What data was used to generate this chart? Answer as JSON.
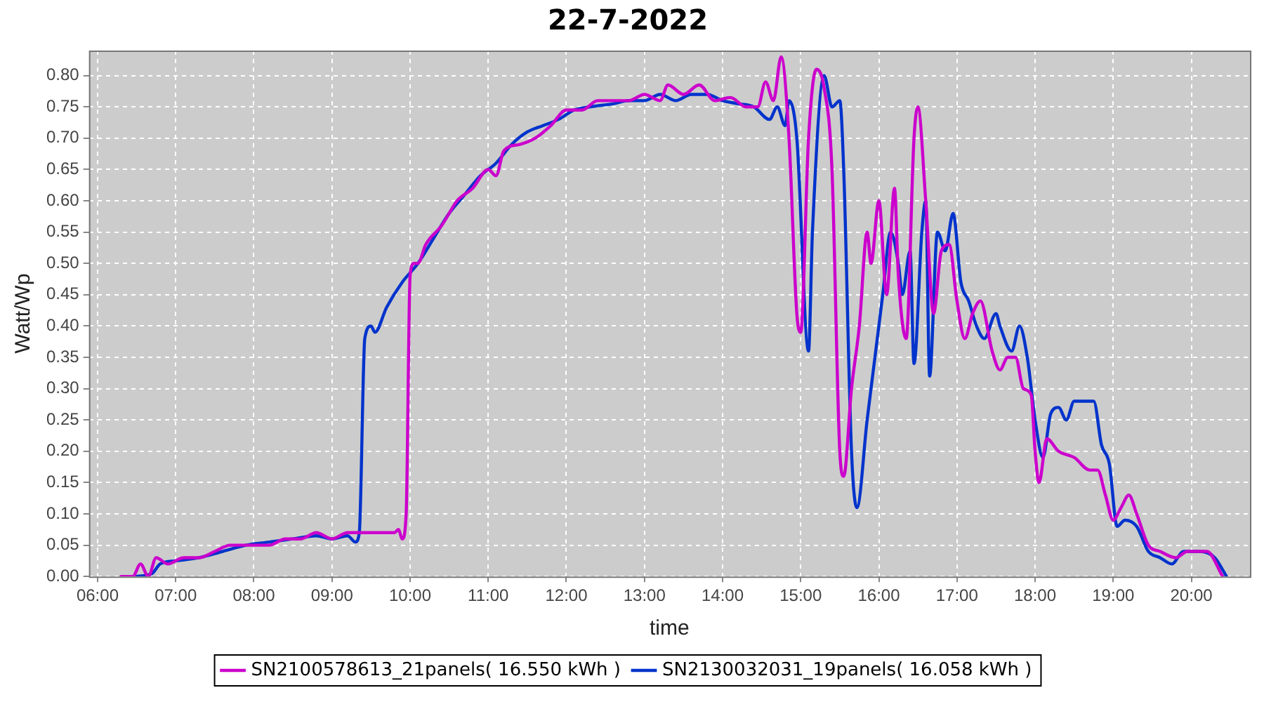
{
  "chart_data": {
    "type": "line",
    "title": "22-7-2022",
    "xlabel": "time",
    "ylabel": "Watt/Wp",
    "xlim": [
      5.89,
      20.75
    ],
    "xticks": [
      {
        "value": 6,
        "label": "06:00"
      },
      {
        "value": 7,
        "label": "07:00"
      },
      {
        "value": 8,
        "label": "08:00"
      },
      {
        "value": 9,
        "label": "09:00"
      },
      {
        "value": 10,
        "label": "10:00"
      },
      {
        "value": 11,
        "label": "11:00"
      },
      {
        "value": 12,
        "label": "12:00"
      },
      {
        "value": 13,
        "label": "13:00"
      },
      {
        "value": 14,
        "label": "14:00"
      },
      {
        "value": 15,
        "label": "15:00"
      },
      {
        "value": 16,
        "label": "16:00"
      },
      {
        "value": 17,
        "label": "17:00"
      },
      {
        "value": 18,
        "label": "18:00"
      },
      {
        "value": 19,
        "label": "19:00"
      },
      {
        "value": 20,
        "label": "20:00"
      }
    ],
    "ylim": [
      0,
      0.84
    ],
    "yticks": [
      {
        "value": 0,
        "label": "0.00"
      },
      {
        "value": 0.05,
        "label": "0.05"
      },
      {
        "value": 0.1,
        "label": "0.10"
      },
      {
        "value": 0.15,
        "label": "0.15"
      },
      {
        "value": 0.2,
        "label": "0.20"
      },
      {
        "value": 0.25,
        "label": "0.25"
      },
      {
        "value": 0.3,
        "label": "0.30"
      },
      {
        "value": 0.35,
        "label": "0.35"
      },
      {
        "value": 0.4,
        "label": "0.40"
      },
      {
        "value": 0.45,
        "label": "0.45"
      },
      {
        "value": 0.5,
        "label": "0.50"
      },
      {
        "value": 0.55,
        "label": "0.55"
      },
      {
        "value": 0.6,
        "label": "0.60"
      },
      {
        "value": 0.65,
        "label": "0.65"
      },
      {
        "value": 0.7,
        "label": "0.70"
      },
      {
        "value": 0.75,
        "label": "0.75"
      },
      {
        "value": 0.8,
        "label": "0.80"
      }
    ],
    "grid": true,
    "legend": "bottom",
    "marker": "none",
    "line_style": "solid",
    "series": [
      {
        "name": "SN2100578613_21panels( 16.550 kWh )",
        "color": "#cc00cc",
        "x": [
          6.3,
          6.45,
          6.55,
          6.65,
          6.75,
          6.9,
          7.1,
          7.3,
          7.5,
          7.7,
          7.9,
          8.0,
          8.2,
          8.4,
          8.6,
          8.8,
          9.0,
          9.2,
          9.4,
          9.6,
          9.8,
          9.85,
          9.9,
          9.95,
          10.0,
          10.05,
          10.1,
          10.2,
          10.4,
          10.5,
          10.6,
          10.8,
          11.0,
          11.1,
          11.2,
          11.4,
          11.6,
          11.8,
          12.0,
          12.2,
          12.4,
          12.6,
          12.8,
          13.0,
          13.2,
          13.3,
          13.5,
          13.7,
          13.9,
          14.1,
          14.3,
          14.45,
          14.55,
          14.65,
          14.75,
          14.85,
          14.95,
          15.0,
          15.1,
          15.2,
          15.3,
          15.4,
          15.5,
          15.55,
          15.65,
          15.75,
          15.85,
          15.9,
          16.0,
          16.1,
          16.2,
          16.25,
          16.35,
          16.45,
          16.5,
          16.6,
          16.7,
          16.8,
          16.9,
          17.0,
          17.1,
          17.2,
          17.3,
          17.45,
          17.55,
          17.65,
          17.75,
          17.85,
          17.95,
          18.0,
          18.05,
          18.15,
          18.3,
          18.5,
          18.7,
          18.8,
          18.9,
          19.0,
          19.1,
          19.2,
          19.3,
          19.45,
          19.6,
          19.8,
          19.95,
          20.05,
          20.2,
          20.4
        ],
        "values": [
          0,
          0,
          0.02,
          0,
          0.03,
          0.02,
          0.03,
          0.03,
          0.04,
          0.05,
          0.05,
          0.05,
          0.05,
          0.06,
          0.06,
          0.07,
          0.06,
          0.07,
          0.07,
          0.07,
          0.07,
          0.075,
          0.06,
          0.1,
          0.48,
          0.5,
          0.5,
          0.53,
          0.56,
          0.58,
          0.6,
          0.62,
          0.65,
          0.64,
          0.68,
          0.69,
          0.7,
          0.72,
          0.745,
          0.745,
          0.76,
          0.76,
          0.76,
          0.77,
          0.76,
          0.785,
          0.77,
          0.785,
          0.76,
          0.765,
          0.75,
          0.75,
          0.79,
          0.76,
          0.83,
          0.7,
          0.42,
          0.39,
          0.7,
          0.81,
          0.78,
          0.65,
          0.2,
          0.16,
          0.3,
          0.4,
          0.55,
          0.5,
          0.6,
          0.45,
          0.62,
          0.48,
          0.38,
          0.7,
          0.75,
          0.6,
          0.42,
          0.52,
          0.53,
          0.44,
          0.38,
          0.42,
          0.44,
          0.36,
          0.33,
          0.35,
          0.35,
          0.3,
          0.29,
          0.2,
          0.15,
          0.22,
          0.2,
          0.19,
          0.17,
          0.17,
          0.13,
          0.09,
          0.11,
          0.13,
          0.1,
          0.05,
          0.04,
          0.03,
          0.04,
          0.04,
          0.04,
          0
        ]
      },
      {
        "name": "SN2130032031_19panels( 16.058 kWh )",
        "color": "#0033cc",
        "x": [
          6.5,
          6.7,
          6.8,
          7.0,
          7.3,
          7.6,
          7.9,
          8.2,
          8.5,
          8.8,
          9.0,
          9.2,
          9.3,
          9.35,
          9.42,
          9.5,
          9.55,
          9.7,
          9.9,
          10.1,
          10.3,
          10.5,
          10.7,
          10.9,
          11.1,
          11.3,
          11.5,
          11.7,
          11.9,
          12.1,
          12.3,
          12.6,
          12.8,
          13.0,
          13.2,
          13.4,
          13.6,
          13.8,
          14.0,
          14.2,
          14.4,
          14.6,
          14.7,
          14.8,
          14.85,
          14.95,
          15.1,
          15.15,
          15.3,
          15.4,
          15.5,
          15.55,
          15.65,
          15.72,
          15.85,
          15.95,
          16.05,
          16.15,
          16.25,
          16.3,
          16.4,
          16.45,
          16.55,
          16.6,
          16.65,
          16.75,
          16.85,
          16.95,
          17.05,
          17.15,
          17.25,
          17.35,
          17.5,
          17.55,
          17.7,
          17.8,
          17.9,
          18.0,
          18.1,
          18.2,
          18.3,
          18.4,
          18.5,
          18.65,
          18.75,
          18.85,
          18.95,
          19.05,
          19.15,
          19.3,
          19.45,
          19.6,
          19.75,
          19.9,
          20.1,
          20.3,
          20.45
        ],
        "values": [
          0,
          0.005,
          0.02,
          0.025,
          0.03,
          0.04,
          0.05,
          0.055,
          0.06,
          0.065,
          0.06,
          0.065,
          0.055,
          0.07,
          0.38,
          0.4,
          0.39,
          0.43,
          0.47,
          0.5,
          0.54,
          0.58,
          0.61,
          0.64,
          0.66,
          0.69,
          0.71,
          0.72,
          0.73,
          0.745,
          0.75,
          0.755,
          0.76,
          0.76,
          0.77,
          0.76,
          0.77,
          0.77,
          0.76,
          0.755,
          0.75,
          0.73,
          0.75,
          0.72,
          0.76,
          0.7,
          0.36,
          0.55,
          0.8,
          0.75,
          0.76,
          0.65,
          0.2,
          0.11,
          0.25,
          0.35,
          0.45,
          0.55,
          0.5,
          0.45,
          0.52,
          0.34,
          0.55,
          0.6,
          0.32,
          0.55,
          0.52,
          0.58,
          0.47,
          0.44,
          0.4,
          0.38,
          0.42,
          0.4,
          0.36,
          0.4,
          0.35,
          0.25,
          0.19,
          0.26,
          0.27,
          0.25,
          0.28,
          0.28,
          0.28,
          0.21,
          0.18,
          0.08,
          0.09,
          0.08,
          0.04,
          0.03,
          0.02,
          0.04,
          0.04,
          0.03,
          0
        ]
      }
    ]
  }
}
